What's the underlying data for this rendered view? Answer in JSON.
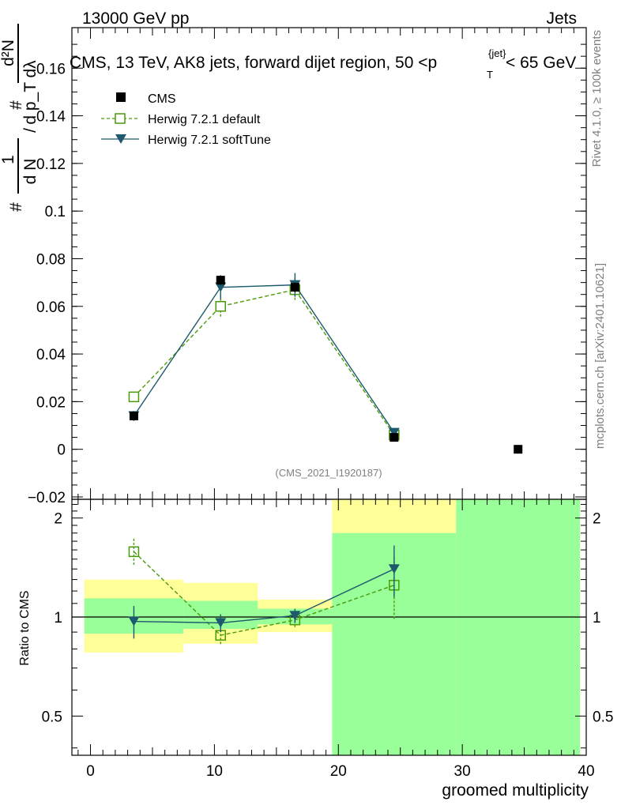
{
  "header": {
    "left": "13000 GeV pp",
    "right": "Jets"
  },
  "side_labels": {
    "rivet": "Rivet 4.1.0, ≥ 100k events",
    "mcplots": "mcplots.cern.ch [arXiv:2401.10621]"
  },
  "chart_data": {
    "type": "line",
    "title": "CMS, 13 TeV, AK8 jets, forward dijet region, 50 <p_T^{jet}< 65 GeV",
    "title_parts": {
      "main": "CMS, 13 TeV, AK8 jets, forward dijet region, 50 <p",
      "sup": "{jet}",
      "sub": "T",
      "tail": "< 65 GeV"
    },
    "ylabel_parts": {
      "left": "# 1 / d N / d p_T",
      "frac_left_top": "1",
      "frac_left_bottom": "d N",
      "frac_num": "d²N",
      "frac_den": "d p_T dλ",
      "hash": "#"
    },
    "analysis_id": "(CMS_2021_I1920187)",
    "xlabel": "groomed multiplicity",
    "xlim": [
      -1.5,
      40
    ],
    "x_ticks": [
      0,
      10,
      20,
      30,
      40
    ],
    "main_ylim": [
      -0.021,
      0.177
    ],
    "main_y_ticks": [
      -0.02,
      0,
      0.02,
      0.04,
      0.06,
      0.08,
      0.1,
      0.12,
      0.14,
      0.16
    ],
    "main_y_tick_labels": [
      "−0.02",
      "0",
      "0.02",
      "0.04",
      "0.06",
      "0.08",
      "0.1",
      "0.12",
      "0.14",
      "0.16"
    ],
    "legend": {
      "position": "top-left",
      "entries": [
        "CMS",
        "Herwig 7.2.1 default",
        "Herwig 7.2.1 softTune"
      ]
    },
    "cms": {
      "name": "CMS",
      "x": [
        3.5,
        10.5,
        16.5,
        24.5,
        34.5
      ],
      "y": [
        0.014,
        0.071,
        0.068,
        0.005,
        0.0
      ],
      "yerr": [
        0.002,
        0.002,
        0.002,
        0.001,
        0.0
      ]
    },
    "series": [
      {
        "name": "Herwig 7.2.1 default",
        "color": "#4a9a0a",
        "marker": "open-square",
        "dashed": true,
        "x": [
          3.5,
          10.5,
          16.5,
          24.5
        ],
        "y": [
          0.022,
          0.06,
          0.067,
          0.006
        ],
        "yerr": [
          0.002,
          0.005,
          0.005,
          0.001
        ],
        "ratio": [
          1.58,
          0.88,
          0.98,
          1.25
        ],
        "ratio_err": [
          0.15,
          0.06,
          0.05,
          0.27
        ]
      },
      {
        "name": "Herwig 7.2.1 softTune",
        "color": "#1d5a6e",
        "marker": "filled-triangle-down",
        "dashed": false,
        "x": [
          3.5,
          10.5,
          16.5,
          24.5
        ],
        "y": [
          0.014,
          0.068,
          0.069,
          0.007
        ],
        "yerr": [
          0.002,
          0.005,
          0.005,
          0.001
        ],
        "ratio": [
          0.97,
          0.96,
          1.01,
          1.4
        ],
        "ratio_err": [
          0.11,
          0.06,
          0.05,
          0.25
        ]
      }
    ],
    "ratio_panel": {
      "ylabel": "Ratio to CMS",
      "ylim_log": [
        0.38,
        2.28
      ],
      "y_ticks": [
        0.5,
        1,
        2
      ],
      "y_tick_labels": [
        "0.5",
        "1",
        "2"
      ],
      "bands": [
        {
          "x0": -0.5,
          "x1": 7.5,
          "yellow": [
            0.78,
            1.3
          ],
          "green": [
            0.89,
            1.14
          ]
        },
        {
          "x0": 7.5,
          "x1": 13.5,
          "yellow": [
            0.83,
            1.27
          ],
          "green": [
            0.92,
            1.12
          ]
        },
        {
          "x0": 13.5,
          "x1": 19.5,
          "yellow": [
            0.9,
            1.13
          ],
          "green": [
            0.95,
            1.06
          ]
        },
        {
          "x0": 19.5,
          "x1": 29.5,
          "yellow": [
            0.38,
            2.28
          ],
          "green": [
            0.38,
            1.8
          ]
        },
        {
          "x0": 29.5,
          "x1": 39.5,
          "yellow": [
            0.38,
            2.28
          ],
          "green": [
            0.38,
            2.28
          ]
        }
      ]
    }
  },
  "colors": {
    "yellow_band": "#ffff99",
    "green_band": "#99ff99",
    "cms_marker": "#000000"
  }
}
